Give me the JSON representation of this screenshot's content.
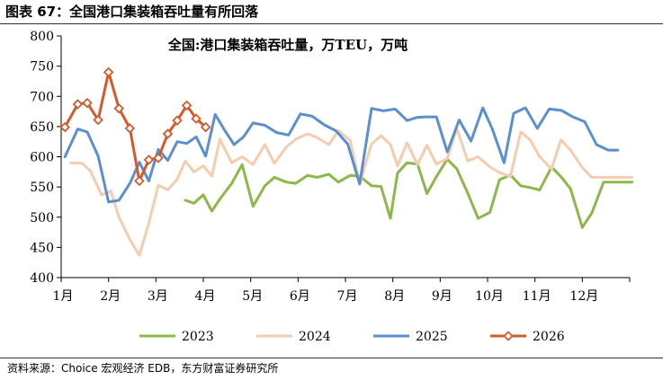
{
  "figure": {
    "title": "图表 67：全国港口集装箱吞吐量有所回落",
    "source": "资料来源：Choice 宏观经济 EDB，东方财富证券研究所"
  },
  "chart_data": {
    "type": "line",
    "title": "全国:港口集装箱吞吐量，万TEU，万吨",
    "xlabel": "",
    "ylabel": "",
    "ylim": [
      400,
      800
    ],
    "yticks": [
      400,
      450,
      500,
      550,
      600,
      650,
      700,
      750,
      800
    ],
    "xlim": [
      1,
      13
    ],
    "month_labels": [
      "1月",
      "2月",
      "3月",
      "4月",
      "5月",
      "6月",
      "7月",
      "8月",
      "9月",
      "10月",
      "11月",
      "12月"
    ],
    "grid": false,
    "legend_position": "bottom",
    "series": [
      {
        "name": "2023",
        "color": "#8cb84a",
        "marker": "none",
        "x": [
          3.62,
          3.8,
          4.0,
          4.18,
          4.35,
          4.6,
          4.82,
          5.05,
          5.3,
          5.5,
          5.75,
          5.95,
          6.2,
          6.4,
          6.65,
          6.85,
          7.1,
          7.3,
          7.55,
          7.75,
          7.95,
          8.1,
          8.3,
          8.52,
          8.72,
          8.92,
          9.15,
          9.35,
          9.58,
          9.8,
          10.05,
          10.25,
          10.48,
          10.7,
          10.9,
          11.1,
          11.35,
          11.55,
          11.75,
          12.0,
          12.2,
          12.45,
          12.65,
          12.85,
          13.05
        ],
        "y": [
          528,
          523,
          537,
          510,
          530,
          556,
          587,
          518,
          552,
          566,
          558,
          556,
          569,
          566,
          571,
          558,
          569,
          568,
          552,
          551,
          498,
          573,
          590,
          588,
          539,
          567,
          596,
          580,
          540,
          498,
          508,
          562,
          570,
          552,
          549,
          545,
          583,
          567,
          547,
          483,
          507,
          558,
          558,
          558,
          558
        ]
      },
      {
        "name": "2024",
        "color": "#f6ccae",
        "marker": "none",
        "x": [
          1.2,
          1.45,
          1.62,
          1.85,
          2.05,
          2.22,
          2.45,
          2.65,
          2.85,
          3.05,
          3.25,
          3.45,
          3.62,
          3.8,
          4.0,
          4.18,
          4.35,
          4.6,
          4.82,
          5.05,
          5.3,
          5.5,
          5.75,
          5.95,
          6.2,
          6.4,
          6.65,
          6.85,
          7.1,
          7.3,
          7.55,
          7.75,
          7.95,
          8.1,
          8.3,
          8.52,
          8.72,
          8.92,
          9.15,
          9.35,
          9.58,
          9.8,
          10.05,
          10.25,
          10.48,
          10.7,
          10.9,
          11.1,
          11.35,
          11.55,
          11.75,
          12.0,
          12.2,
          12.45,
          12.65,
          12.85,
          13.05
        ],
        "y": [
          590,
          589,
          576,
          537,
          543,
          500,
          463,
          437,
          490,
          553,
          545,
          563,
          593,
          575,
          585,
          568,
          629,
          590,
          600,
          587,
          620,
          589,
          616,
          629,
          638,
          632,
          620,
          643,
          627,
          555,
          621,
          635,
          620,
          585,
          623,
          587,
          619,
          588,
          597,
          647,
          593,
          600,
          583,
          574,
          567,
          641,
          628,
          600,
          580,
          628,
          611,
          582,
          566,
          566,
          566,
          566,
          566
        ]
      },
      {
        "name": "2025",
        "color": "#5b8fcf",
        "marker": "none",
        "x": [
          1.08,
          1.35,
          1.55,
          1.78,
          2.0,
          2.22,
          2.45,
          2.65,
          2.85,
          3.05,
          3.25,
          3.45,
          3.65,
          3.85,
          4.05,
          4.25,
          4.45,
          4.65,
          4.85,
          5.05,
          5.3,
          5.55,
          5.8,
          6.05,
          6.3,
          6.55,
          6.8,
          7.05,
          7.3,
          7.55,
          7.8,
          8.05,
          8.3,
          8.5,
          8.7,
          8.92,
          9.15,
          9.4,
          9.65,
          9.9,
          10.1,
          10.35,
          10.55,
          10.8,
          11.05,
          11.3,
          11.55,
          11.8,
          12.05,
          12.3,
          12.55,
          12.75
        ],
        "y": [
          600,
          646,
          641,
          601,
          525,
          528,
          556,
          591,
          560,
          612,
          594,
          625,
          622,
          633,
          601,
          670,
          644,
          620,
          633,
          656,
          652,
          640,
          636,
          671,
          667,
          653,
          643,
          621,
          555,
          680,
          676,
          679,
          660,
          665,
          666,
          666,
          608,
          661,
          626,
          681,
          646,
          590,
          672,
          681,
          647,
          679,
          677,
          666,
          658,
          620,
          611,
          611
        ]
      },
      {
        "name": "2026",
        "color": "#d45a2c",
        "marker": "diamond",
        "x": [
          1.08,
          1.35,
          1.55,
          1.78,
          2.0,
          2.22,
          2.45,
          2.65,
          2.85,
          3.05,
          3.25,
          3.45,
          3.65,
          3.85,
          4.05
        ],
        "y": [
          649,
          687,
          689,
          661,
          740,
          680,
          647,
          560,
          595,
          598,
          638,
          660,
          685,
          663,
          649
        ]
      }
    ]
  }
}
